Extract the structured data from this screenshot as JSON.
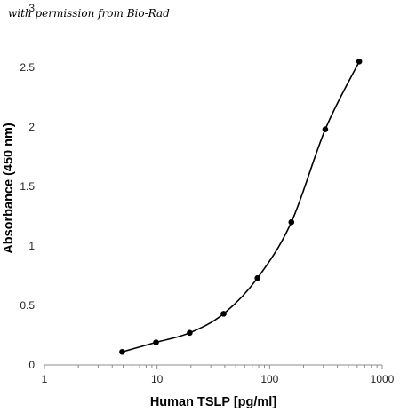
{
  "watermark": "with permission from Bio-Rad",
  "chart_data": {
    "type": "line",
    "xlabel": "Human TSLP [pg/ml]",
    "ylabel": "Absorbance (450 nm)",
    "xscale": "log",
    "xlim": [
      1,
      1000
    ],
    "ylim": [
      0,
      3
    ],
    "x_ticks": [
      1,
      10,
      100,
      1000
    ],
    "x_tick_labels": [
      "1",
      "10",
      "100",
      "1000"
    ],
    "y_ticks": [
      0,
      0.5,
      1,
      1.5,
      2,
      2.5,
      3
    ],
    "y_tick_labels": [
      "0",
      "0.5",
      "1",
      "1.5",
      "2",
      "2.5",
      "3"
    ],
    "grid": false,
    "series": [
      {
        "x": [
          4.9,
          9.8,
          19.5,
          39,
          78,
          156,
          312,
          625
        ],
        "y": [
          0.11,
          0.19,
          0.27,
          0.43,
          0.73,
          1.2,
          1.98,
          2.55
        ]
      }
    ]
  }
}
